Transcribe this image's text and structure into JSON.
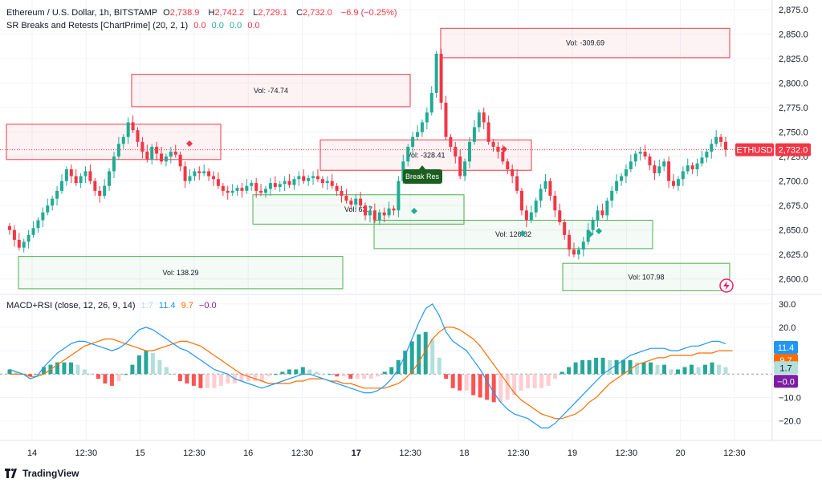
{
  "header": {
    "symbol": "Ethereum / U.S. Dollar, 1h, BITSTAMP",
    "o_label": "O",
    "o": "2,738.9",
    "h_label": "H",
    "h": "2,742.2",
    "l_label": "L",
    "l": "2,729.1",
    "c_label": "C",
    "c": "2,732.0",
    "change": "−6.9 (−0.25%)",
    "indicator": "SR Breaks and Retests [ChartPrime] (20, 2, 1)",
    "ind_vals": [
      "0.0",
      "0.0",
      "0.0",
      "0.0"
    ]
  },
  "macd_legend": {
    "title": "MACD+RSI (close, 12, 26, 9, 14)",
    "vals": [
      "1.7",
      "11.4",
      "9.7",
      "−0.0"
    ]
  },
  "price_badge": {
    "symbol": "ETHUSD",
    "value": "2,732.0"
  },
  "macd_badges": [
    "11.4",
    "9.7",
    "1.7",
    "−0.0"
  ],
  "footer": {
    "brand": "TradingView"
  },
  "colors": {
    "up": "#22ab94",
    "down": "#f23645",
    "macd": "#2196f3",
    "signal": "#ff6d00",
    "resistance": "#f23645",
    "support": "#4caf50"
  },
  "chart_data": {
    "type": "candlestick",
    "price_axis": [
      "2,875.0",
      "2,850.0",
      "2,825.0",
      "2,800.0",
      "2,775.0",
      "2,750.0",
      "2,725.0",
      "2,700.0",
      "2,675.0",
      "2,650.0",
      "2,625.0",
      "2,600.0"
    ],
    "price_ylim": [
      2585,
      2880
    ],
    "macd_axis": [
      "30.0",
      "20.0",
      "10.0",
      "−10.0",
      "−20.0"
    ],
    "macd_ylim": [
      -28,
      33
    ],
    "time_axis": [
      "14",
      "12:30",
      "15",
      "12:30",
      "16",
      "12:30",
      "17",
      "12:30",
      "18",
      "12:30",
      "19",
      "12:30",
      "20",
      "12:30"
    ],
    "close": [
      2650,
      2640,
      2632,
      2638,
      2645,
      2652,
      2660,
      2668,
      2675,
      2682,
      2690,
      2700,
      2712,
      2705,
      2698,
      2705,
      2710,
      2700,
      2690,
      2685,
      2695,
      2710,
      2725,
      2738,
      2745,
      2760,
      2752,
      2740,
      2730,
      2722,
      2735,
      2728,
      2720,
      2725,
      2730,
      2727,
      2715,
      2700,
      2705,
      2710,
      2708,
      2710,
      2705,
      2702,
      2695,
      2690,
      2688,
      2690,
      2693,
      2690,
      2695,
      2698,
      2690,
      2688,
      2692,
      2698,
      2694,
      2697,
      2700,
      2696,
      2702,
      2705,
      2700,
      2703,
      2705,
      2702,
      2698,
      2700,
      2695,
      2690,
      2685,
      2680,
      2676,
      2682,
      2675,
      2665,
      2670,
      2660,
      2668,
      2665,
      2672,
      2670,
      2700,
      2720,
      2735,
      2745,
      2750,
      2760,
      2770,
      2790,
      2830,
      2780,
      2745,
      2735,
      2725,
      2705,
      2720,
      2740,
      2755,
      2770,
      2760,
      2740,
      2735,
      2730,
      2720,
      2712,
      2705,
      2690,
      2670,
      2660,
      2668,
      2680,
      2692,
      2700,
      2685,
      2670,
      2658,
      2645,
      2630,
      2625,
      2630,
      2638,
      2650,
      2660,
      2670,
      2665,
      2680,
      2690,
      2700,
      2705,
      2712,
      2720,
      2728,
      2730,
      2725,
      2716,
      2708,
      2715,
      2720,
      2700,
      2695,
      2702,
      2710,
      2716,
      2712,
      2718,
      2724,
      2730,
      2738,
      2745,
      2740,
      2732
    ],
    "macd": [
      2,
      1,
      0,
      -2,
      -1,
      3,
      6,
      9,
      11,
      13,
      14,
      14,
      13,
      12,
      11,
      10,
      11,
      13,
      16,
      19,
      20,
      19,
      17,
      15,
      13,
      11,
      10,
      8,
      6,
      4,
      2,
      1,
      0,
      -2,
      -3,
      -4,
      -5,
      -6,
      -5,
      -4,
      -3,
      -2,
      -1,
      0,
      0,
      -1,
      -2,
      -3,
      -4,
      -5,
      -6,
      -7,
      -8,
      -8,
      -7,
      -5,
      -2,
      2,
      8,
      15,
      22,
      28,
      30,
      25,
      18,
      14,
      12,
      10,
      6,
      2,
      -3,
      -8,
      -12,
      -15,
      -17,
      -18,
      -19,
      -21,
      -23,
      -23,
      -21,
      -18,
      -15,
      -12,
      -9,
      -6,
      -3,
      0,
      2,
      4,
      6,
      8,
      9,
      10,
      11,
      11,
      11,
      10,
      10,
      11,
      12,
      12,
      13,
      14,
      14,
      13
    ],
    "signal": [
      0,
      0,
      0,
      -1,
      -1,
      0,
      2,
      4,
      6,
      8,
      10,
      12,
      13,
      14,
      15,
      15,
      14,
      13,
      12,
      11,
      10,
      10,
      11,
      12,
      13,
      14,
      14,
      13,
      12,
      10,
      8,
      6,
      4,
      2,
      0,
      -1,
      -2,
      -3,
      -4,
      -4,
      -4,
      -4,
      -3,
      -3,
      -2,
      -2,
      -2,
      -3,
      -3,
      -4,
      -4,
      -5,
      -6,
      -6,
      -6,
      -6,
      -5,
      -4,
      -2,
      1,
      5,
      10,
      15,
      18,
      20,
      20,
      19,
      17,
      15,
      12,
      8,
      4,
      0,
      -4,
      -8,
      -11,
      -13,
      -15,
      -17,
      -18,
      -19,
      -19,
      -18,
      -17,
      -15,
      -12,
      -10,
      -7,
      -4,
      -2,
      0,
      2,
      4,
      5,
      6,
      7,
      7,
      8,
      8,
      8,
      8,
      9,
      9,
      9,
      10,
      10,
      10
    ],
    "zones": [
      {
        "kind": "resistance",
        "vol": "",
        "x1": 8,
        "x2": 275,
        "top": 2758,
        "bot": 2722
      },
      {
        "kind": "resistance",
        "vol": "Vol: -74.74",
        "x1": 164,
        "x2": 511,
        "top": 2809,
        "bot": 2776
      },
      {
        "kind": "resistance",
        "vol": "Vol: -328.41",
        "x1": 399,
        "x2": 662,
        "top": 2742,
        "bot": 2711
      },
      {
        "kind": "resistance",
        "vol": "Vol: -309.69",
        "x1": 549,
        "x2": 909,
        "top": 2856,
        "bot": 2826
      },
      {
        "kind": "support",
        "vol": "Vol: 138.29",
        "x1": 23,
        "x2": 427,
        "top": 2623,
        "bot": 2590
      },
      {
        "kind": "support",
        "vol": "Vol: 63.7",
        "x1": 315,
        "x2": 578,
        "top": 2686,
        "bot": 2656
      },
      {
        "kind": "support",
        "vol": "Vol: 126.82",
        "x1": 466,
        "x2": 813,
        "top": 2660,
        "bot": 2631
      },
      {
        "kind": "support",
        "vol": "Vol: 107.98",
        "x1": 701,
        "x2": 909,
        "top": 2616,
        "bot": 2588
      }
    ],
    "break_label": "Break Res",
    "current_price": 2732.0
  }
}
